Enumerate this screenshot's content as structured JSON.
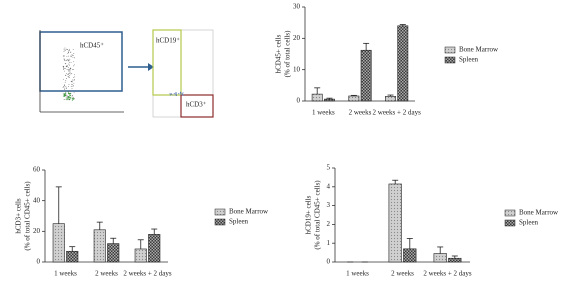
{
  "flow_plots": {
    "gates": [
      "hCD45⁺",
      "hCD19⁺",
      "hCD3⁺"
    ]
  },
  "chart_data": [
    {
      "type": "bar",
      "ylabel": [
        "hCD45+ cells",
        "(% of total cells)"
      ],
      "categories": [
        "1 weeks",
        "2 weeks",
        "2 weeks + 2 days"
      ],
      "series": [
        {
          "name": "Bone Marrow",
          "color": "#d0d0d0",
          "values": [
            2.2,
            1.6,
            1.5
          ],
          "errors": [
            2.0,
            0.2,
            0.4
          ]
        },
        {
          "name": "Spleen",
          "color": "#3a3a3a",
          "values": [
            0.6,
            16.2,
            24.0
          ],
          "errors": [
            0.3,
            2.2,
            0.4
          ]
        }
      ],
      "ylim": [
        0,
        30
      ],
      "yticks": [
        0,
        10,
        20,
        30
      ],
      "legend": "right"
    },
    {
      "type": "bar",
      "ylabel": [
        "hCD3+ cells",
        "(% of total CD45+ cells)"
      ],
      "categories": [
        "1 weeks",
        "2 weeks",
        "2 weeks + 2 days"
      ],
      "series": [
        {
          "name": "Bone Marrow",
          "color": "#d0d0d0",
          "values": [
            25,
            21,
            8.5
          ],
          "errors": [
            24,
            5,
            6
          ]
        },
        {
          "name": "Spleen",
          "color": "#3a3a3a",
          "values": [
            7,
            12,
            18
          ],
          "errors": [
            3,
            3.5,
            3.5
          ]
        }
      ],
      "ylim": [
        0,
        60
      ],
      "yticks": [
        0,
        20,
        40,
        60
      ],
      "legend": "right"
    },
    {
      "type": "bar",
      "ylabel": [
        "hCD19+ cells",
        "(% of total CD45+ cells)"
      ],
      "categories": [
        "1 weeks",
        "2 weeks",
        "2 weeks + 2 days"
      ],
      "series": [
        {
          "name": "Bone Marrow",
          "color": "#d0d0d0",
          "values": [
            0,
            4.15,
            0.45
          ],
          "errors": [
            0,
            0.2,
            0.35
          ]
        },
        {
          "name": "Spleen",
          "color": "#3a3a3a",
          "values": [
            0,
            0.7,
            0.2
          ],
          "errors": [
            0,
            0.55,
            0.12
          ]
        }
      ],
      "ylim": [
        0,
        5
      ],
      "yticks": [
        0,
        1,
        2,
        3,
        4,
        5
      ],
      "legend": "right"
    }
  ]
}
